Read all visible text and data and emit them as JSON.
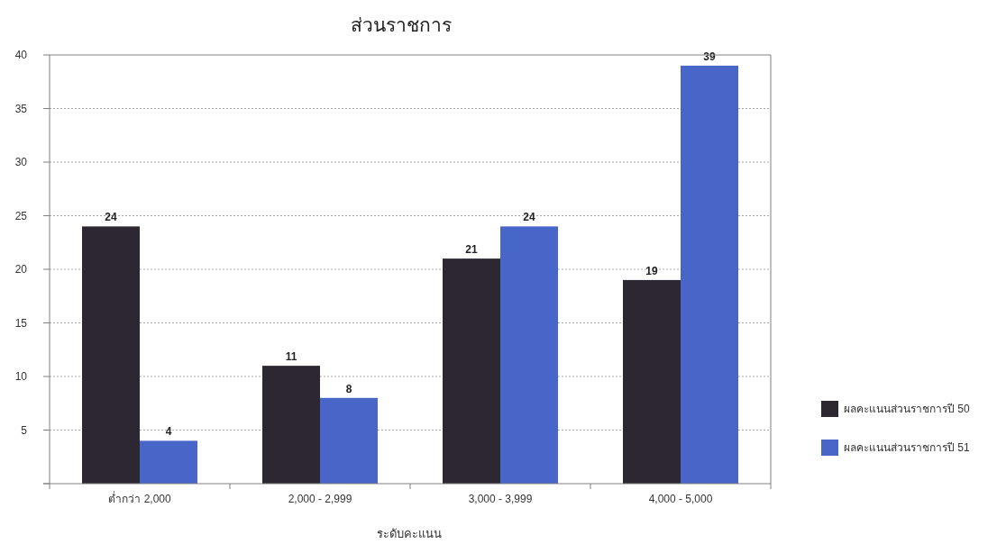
{
  "chart_data": {
    "type": "bar",
    "title": "ส่วนราชการ",
    "xlabel": "ระดับคะแนน",
    "categories": [
      "ต่ำกว่า 2,000",
      "2,000 - 2,999",
      "3,000 - 3,999",
      "4,000 - 5,000"
    ],
    "series": [
      {
        "name": "ผลคะแนนส่วนราชการปี 50",
        "color": "#2d2731",
        "values": [
          24,
          11,
          21,
          19
        ]
      },
      {
        "name": "ผลคะแนนส่วนราชการปี 51",
        "color": "#4866c8",
        "values": [
          4,
          8,
          24,
          39
        ]
      }
    ],
    "ylim": [
      0,
      40
    ],
    "yticks": [
      {
        "value": 0,
        "label": null
      },
      5,
      10,
      15,
      20,
      25,
      30,
      35,
      40
    ],
    "grid": "y",
    "legend": "bottom right",
    "data_labels": true
  }
}
